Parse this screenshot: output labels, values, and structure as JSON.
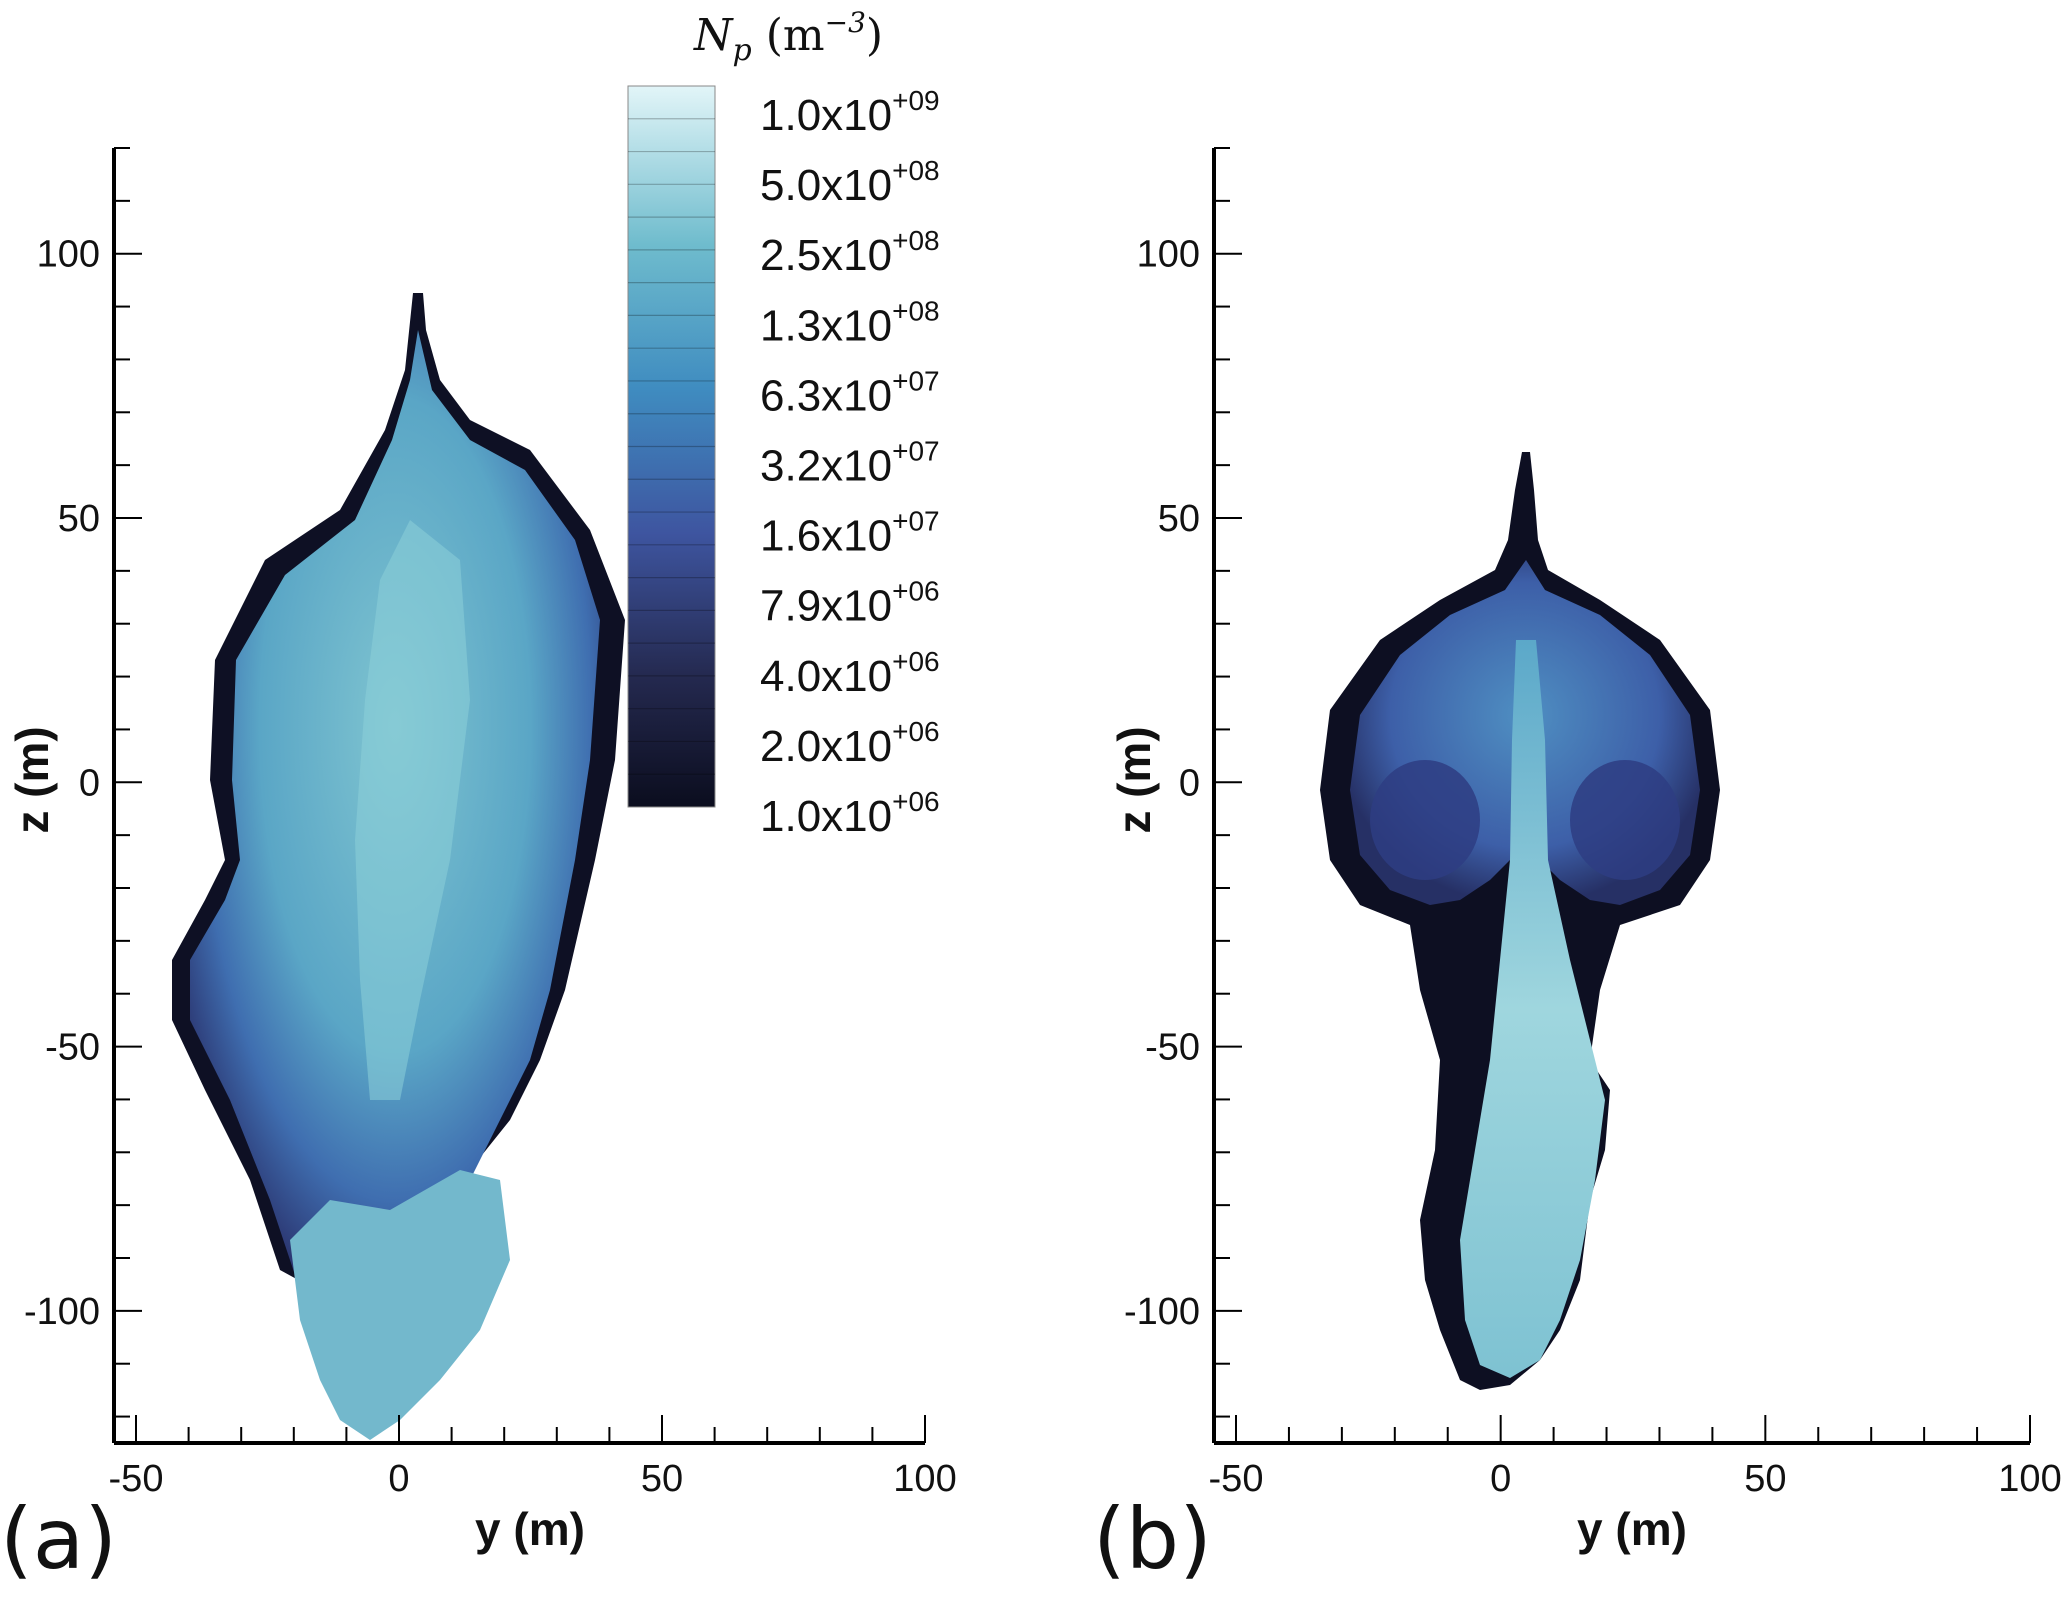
{
  "chart_data": [
    {
      "type": "heatmap",
      "panel_label": "(a)",
      "xlabel": "y (m)",
      "ylabel": "z (m)",
      "xlim": [
        -50,
        100
      ],
      "ylim": [
        -125,
        120
      ],
      "x_ticks": [
        "-50",
        "0",
        "50",
        "100"
      ],
      "y_ticks": [
        "-100",
        "-50",
        "0",
        "50",
        "100"
      ],
      "grid": false
    },
    {
      "type": "heatmap",
      "panel_label": "(b)",
      "xlabel": "y (m)",
      "ylabel": "z (m)",
      "xlim": [
        -50,
        100
      ],
      "ylim": [
        -125,
        120
      ],
      "x_ticks": [
        "-50",
        "0",
        "50",
        "100"
      ],
      "y_ticks": [
        "-100",
        "-50",
        "0",
        "50",
        "100"
      ],
      "grid": false
    }
  ],
  "colorbar": {
    "title": "N",
    "title_sub": "p",
    "title_unit": "(m",
    "title_unit_sup": "−3",
    "title_close": ")",
    "placement": "top, between panels",
    "colors_low_to_high": [
      "#0d0f22",
      "#3c5196",
      "#3d86bd",
      "#65b4c9",
      "#e0f4f7"
    ],
    "levels": [
      {
        "mant": "1.0x10",
        "exp": "+09"
      },
      {
        "mant": "5.0x10",
        "exp": "+08"
      },
      {
        "mant": "2.5x10",
        "exp": "+08"
      },
      {
        "mant": "1.3x10",
        "exp": "+08"
      },
      {
        "mant": "6.3x10",
        "exp": "+07"
      },
      {
        "mant": "3.2x10",
        "exp": "+07"
      },
      {
        "mant": "1.6x10",
        "exp": "+07"
      },
      {
        "mant": "7.9x10",
        "exp": "+06"
      },
      {
        "mant": "4.0x10",
        "exp": "+06"
      },
      {
        "mant": "2.0x10",
        "exp": "+06"
      },
      {
        "mant": "1.0x10",
        "exp": "+06"
      }
    ]
  }
}
